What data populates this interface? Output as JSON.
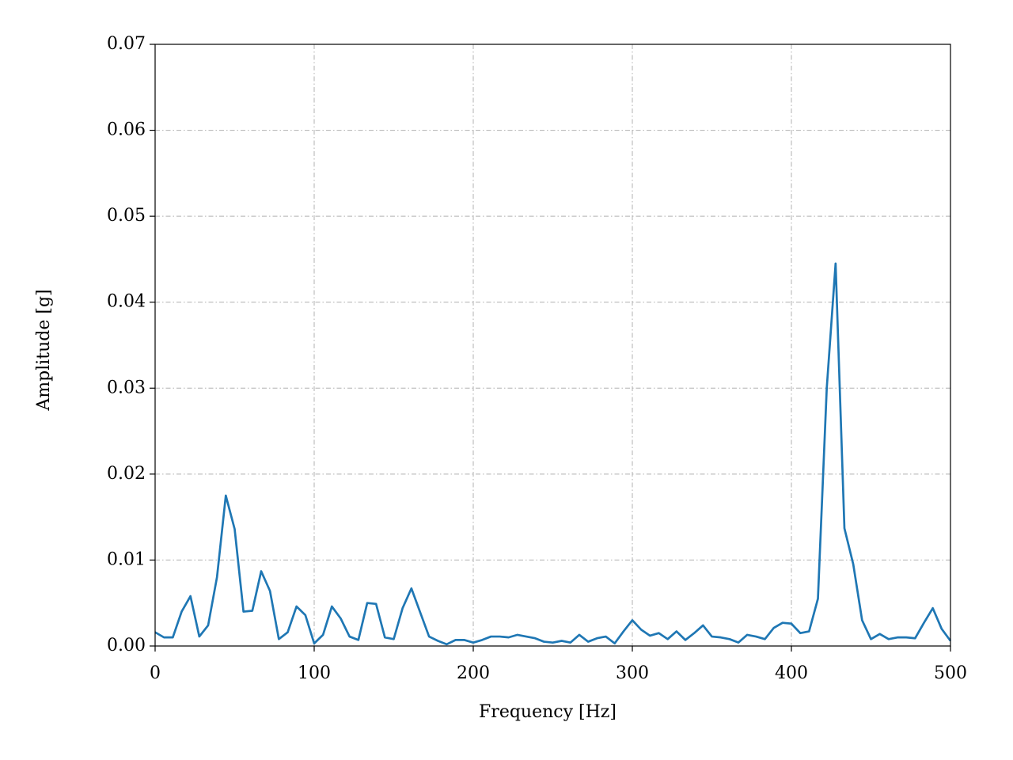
{
  "chart_data": {
    "type": "line",
    "xlabel": "Frequency [Hz]",
    "ylabel": "Amplitude [g]",
    "x": [
      0,
      5.56,
      11.11,
      16.67,
      22.22,
      27.78,
      33.33,
      38.89,
      44.44,
      50,
      55.56,
      61.11,
      66.67,
      72.22,
      77.78,
      83.33,
      88.89,
      94.44,
      100,
      105.56,
      111.11,
      116.67,
      122.22,
      127.78,
      133.33,
      138.89,
      144.44,
      150,
      155.56,
      161.11,
      166.67,
      172.22,
      177.78,
      183.33,
      188.89,
      194.44,
      200,
      205.56,
      211.11,
      216.67,
      222.22,
      227.78,
      233.33,
      238.89,
      244.44,
      250,
      255.56,
      261.11,
      266.67,
      272.22,
      277.78,
      283.33,
      288.89,
      294.44,
      300,
      305.56,
      311.11,
      316.67,
      322.22,
      327.78,
      333.33,
      338.89,
      344.44,
      350,
      355.56,
      361.11,
      366.67,
      372.22,
      377.78,
      383.33,
      388.89,
      394.44,
      400,
      405.56,
      411.11,
      416.67,
      422.22,
      427.78,
      433.33,
      438.89,
      444.44,
      450,
      455.56,
      461.11,
      466.67,
      472.22,
      477.78,
      483.33,
      488.89,
      494.44,
      500
    ],
    "values": [
      0.0016,
      0.001,
      0.001,
      0.004,
      0.0058,
      0.0011,
      0.0024,
      0.008,
      0.0175,
      0.0136,
      0.004,
      0.0041,
      0.0087,
      0.0064,
      0.0008,
      0.0016,
      0.0046,
      0.0036,
      0.0003,
      0.0013,
      0.0046,
      0.0032,
      0.0011,
      0.0007,
      0.005,
      0.0049,
      0.001,
      0.0008,
      0.0044,
      0.0067,
      0.0039,
      0.0011,
      0.0006,
      0.0002,
      0.0007,
      0.0007,
      0.0004,
      0.0007,
      0.0011,
      0.0011,
      0.001,
      0.0013,
      0.0011,
      0.0009,
      0.0005,
      0.0004,
      0.0006,
      0.0004,
      0.0013,
      0.0005,
      0.0009,
      0.0011,
      0.0003,
      0.0017,
      0.003,
      0.0019,
      0.0012,
      0.0015,
      0.0008,
      0.0017,
      0.0007,
      0.0015,
      0.0024,
      0.0011,
      0.001,
      0.0008,
      0.0004,
      0.0013,
      0.0011,
      0.0008,
      0.0021,
      0.0027,
      0.0026,
      0.0015,
      0.0017,
      0.0055,
      0.03,
      0.0445,
      0.0137,
      0.0095,
      0.003,
      0.0008,
      0.0014,
      0.0008,
      0.001,
      0.001,
      0.0009,
      0.0027,
      0.0044,
      0.002,
      0.0006
    ],
    "color": "#1f77b4",
    "xlim": [
      0,
      500
    ],
    "xticks": [
      0,
      100,
      200,
      300,
      400,
      500
    ],
    "ylim": [
      0,
      0.07
    ],
    "yticks": [
      {
        "value": 0,
        "label": "0.00"
      },
      0.01,
      0.02,
      0.03,
      0.04,
      0.05,
      0.06,
      0.07
    ],
    "grid": true
  }
}
